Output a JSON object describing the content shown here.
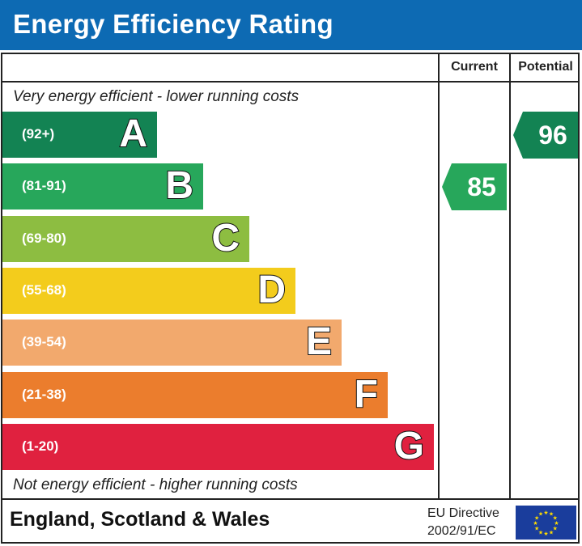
{
  "header": {
    "title": "Energy Efficiency Rating"
  },
  "columns": {
    "current": "Current",
    "potential": "Potential"
  },
  "captions": {
    "top": "Very energy efficient - lower running costs",
    "bottom": "Not energy efficient - higher running costs"
  },
  "bands": [
    {
      "letter": "A",
      "range": "(92+)",
      "color": "#138353"
    },
    {
      "letter": "B",
      "range": "(81-91)",
      "color": "#27a75b"
    },
    {
      "letter": "C",
      "range": "(69-80)",
      "color": "#8dbd41"
    },
    {
      "letter": "D",
      "range": "(55-68)",
      "color": "#f3cc1c"
    },
    {
      "letter": "E",
      "range": "(39-54)",
      "color": "#f2a96d"
    },
    {
      "letter": "F",
      "range": "(21-38)",
      "color": "#eb7d2d"
    },
    {
      "letter": "G",
      "range": "(1-20)",
      "color": "#e0213f"
    }
  ],
  "chart_data": {
    "type": "bar",
    "categories": [
      "A",
      "B",
      "C",
      "D",
      "E",
      "F",
      "G"
    ],
    "ranges": [
      "(92+)",
      "(81-91)",
      "(69-80)",
      "(55-68)",
      "(39-54)",
      "(21-38)",
      "(1-20)"
    ],
    "current": {
      "value": 85,
      "band": "B",
      "color": "#27a75b"
    },
    "potential": {
      "value": 96,
      "band": "A",
      "color": "#138353"
    }
  },
  "footer": {
    "region": "England, Scotland & Wales",
    "directive_line1": "EU Directive",
    "directive_line2": "2002/91/EC",
    "flag_icon": "eu-flag-icon"
  }
}
